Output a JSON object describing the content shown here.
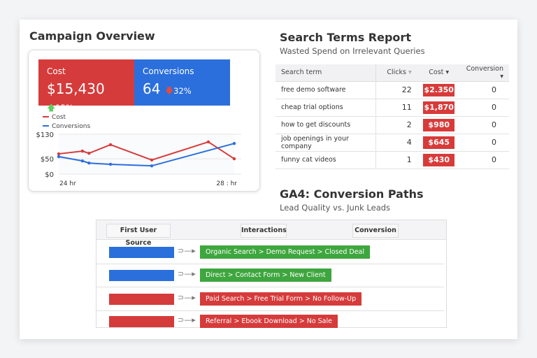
{
  "campaign": {
    "title": "Campaign Overview",
    "cost": {
      "label": "Cost",
      "value": "$15,430",
      "change": "15%",
      "direction": "up",
      "color": "#d63b3b"
    },
    "conversions": {
      "label": "Conversions",
      "value": "64",
      "change": "32%",
      "direction": "down",
      "color": "#2b6fdc"
    }
  },
  "chart_data": {
    "type": "line",
    "x": [
      24,
      24.54,
      24.69,
      25.18,
      26.12,
      27.41,
      28
    ],
    "series": [
      {
        "name": "Cost",
        "color": "#d63b3b",
        "values": [
          66,
          75,
          68,
          96,
          46,
          105,
          50
        ]
      },
      {
        "name": "Conversions",
        "color": "#2b6fdc",
        "values": [
          57,
          43,
          36,
          32,
          27,
          null,
          100
        ]
      }
    ],
    "yticks": [
      "$0",
      "$50",
      "$130"
    ],
    "ylim": [
      0,
      130
    ],
    "xticks": [
      "24  hr",
      "28 : hr"
    ],
    "legend": "top-left",
    "grid": true
  },
  "search_terms": {
    "title": "Search Terms Report",
    "subtitle": "Wasted Spend on Irrelevant Queries",
    "columns": [
      "Search term",
      "Clicks",
      "Cost",
      "Conversion"
    ],
    "rows": [
      [
        "free demo software",
        "22",
        "$2.350",
        "0"
      ],
      [
        "cheap trial options",
        "11",
        "$1,870",
        "0"
      ],
      [
        "how to get discounts",
        "2",
        "$980",
        "0"
      ],
      [
        "job openings in your company",
        "4",
        "$645",
        "0"
      ],
      [
        "funny cat videos",
        "1",
        "$430",
        "0"
      ]
    ]
  },
  "ga4": {
    "title": "GA4: Conversion Paths",
    "subtitle": "Lead Quality vs. Junk Leads",
    "headers": [
      "First User Source",
      "Interactions",
      "Conversion"
    ],
    "paths": [
      {
        "label": "Organic Search  >  Demo Request  >  Closed Deal",
        "color": "#3ea63e",
        "source_color": "#2b6fdc"
      },
      {
        "label": "Direct  >  Contact Form  >  New Client",
        "color": "#3ea63e",
        "source_color": "#2b6fdc"
      },
      {
        "label": "Paid Search  >  Free Trial Form  >  No Follow-Up",
        "color": "#d63b3b",
        "source_color": "#d63b3b"
      },
      {
        "label": "Referral  >  Ebook Download  >  No Sale",
        "color": "#d63b3b",
        "source_color": "#d63b3b"
      }
    ]
  }
}
